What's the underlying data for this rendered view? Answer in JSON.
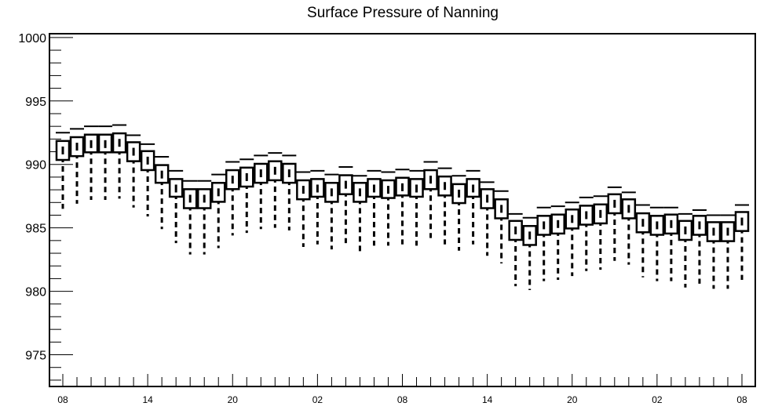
{
  "chart_data": {
    "type": "box",
    "title": "Surface Pressure of Nanning",
    "xlabel": "",
    "ylabel": "",
    "ylim": [
      972.5,
      1000.3
    ],
    "yticks": [
      975,
      980,
      985,
      990,
      995,
      1000
    ],
    "xtick_labels": [
      {
        "index": 0,
        "label": "08"
      },
      {
        "index": 6,
        "label": "14"
      },
      {
        "index": 12,
        "label": "20"
      },
      {
        "index": 18,
        "label": "02"
      },
      {
        "index": 24,
        "label": "08"
      },
      {
        "index": 30,
        "label": "14"
      },
      {
        "index": 36,
        "label": "20"
      },
      {
        "index": 42,
        "label": "02"
      },
      {
        "index": 48,
        "label": "08"
      }
    ],
    "n_steps": 49,
    "grid": false,
    "series": [
      {
        "median": [
          991.1,
          991.4,
          991.6,
          991.6,
          991.7,
          991.0,
          990.3,
          989.2,
          988.1,
          987.3,
          987.3,
          987.8,
          988.8,
          989.0,
          989.3,
          989.5,
          989.3,
          988.0,
          988.1,
          987.8,
          988.4,
          987.8,
          988.1,
          988.0,
          988.2,
          988.1,
          988.8,
          988.3,
          987.7,
          988.1,
          987.3,
          986.5,
          984.8,
          984.4,
          985.2,
          985.3,
          985.7,
          986.0,
          986.1,
          986.9,
          986.5,
          985.4,
          985.2,
          985.3,
          984.8,
          985.2,
          984.7,
          984.7,
          985.5
        ],
        "q1": [
          990.6,
          990.9,
          991.2,
          991.2,
          991.2,
          990.5,
          989.8,
          988.8,
          987.7,
          986.8,
          986.8,
          987.3,
          988.3,
          988.5,
          988.8,
          989.0,
          988.8,
          987.5,
          987.7,
          987.3,
          987.9,
          987.3,
          987.7,
          987.6,
          987.8,
          987.7,
          988.3,
          987.8,
          987.2,
          987.7,
          986.8,
          986.0,
          984.3,
          983.9,
          984.7,
          984.8,
          985.2,
          985.5,
          985.6,
          986.4,
          986.0,
          984.9,
          984.7,
          984.8,
          984.3,
          984.7,
          984.2,
          984.2,
          985.0
        ],
        "q3": [
          991.6,
          991.9,
          992.1,
          992.1,
          992.2,
          991.5,
          990.8,
          989.7,
          988.6,
          987.8,
          987.8,
          988.3,
          989.3,
          989.5,
          989.8,
          990.0,
          989.8,
          988.5,
          988.6,
          988.3,
          988.9,
          988.3,
          988.6,
          988.5,
          988.7,
          988.6,
          989.3,
          988.8,
          988.2,
          988.6,
          987.8,
          987.0,
          985.3,
          984.9,
          985.7,
          985.8,
          986.2,
          986.5,
          986.6,
          987.4,
          987.0,
          985.9,
          985.7,
          985.8,
          985.3,
          985.7,
          985.2,
          985.2,
          986.0
        ],
        "whisker_low": [
          986.5,
          986.9,
          987.2,
          987.2,
          987.3,
          986.6,
          985.9,
          984.9,
          983.8,
          982.9,
          982.9,
          983.4,
          984.4,
          984.6,
          984.9,
          985.0,
          984.8,
          983.5,
          983.7,
          983.3,
          983.8,
          983.1,
          983.6,
          983.6,
          983.7,
          983.6,
          984.2,
          983.7,
          983.2,
          983.7,
          982.8,
          982.2,
          980.4,
          980.1,
          980.8,
          980.9,
          981.2,
          981.6,
          981.7,
          982.4,
          982.1,
          981.1,
          980.8,
          980.8,
          980.3,
          980.6,
          980.2,
          980.2,
          980.9
        ],
        "whisker_high": [
          992.5,
          992.8,
          993.0,
          993.0,
          993.1,
          992.3,
          991.6,
          990.6,
          989.5,
          988.7,
          988.7,
          989.2,
          990.2,
          990.4,
          990.7,
          990.9,
          990.7,
          989.4,
          989.5,
          989.2,
          989.8,
          989.1,
          989.5,
          989.4,
          989.6,
          989.5,
          990.2,
          989.7,
          989.1,
          989.5,
          988.6,
          987.9,
          986.1,
          985.8,
          986.6,
          986.7,
          987.0,
          987.4,
          987.5,
          988.2,
          987.8,
          986.8,
          986.6,
          986.6,
          986.1,
          986.4,
          986.0,
          986.0,
          986.8
        ]
      }
    ]
  }
}
